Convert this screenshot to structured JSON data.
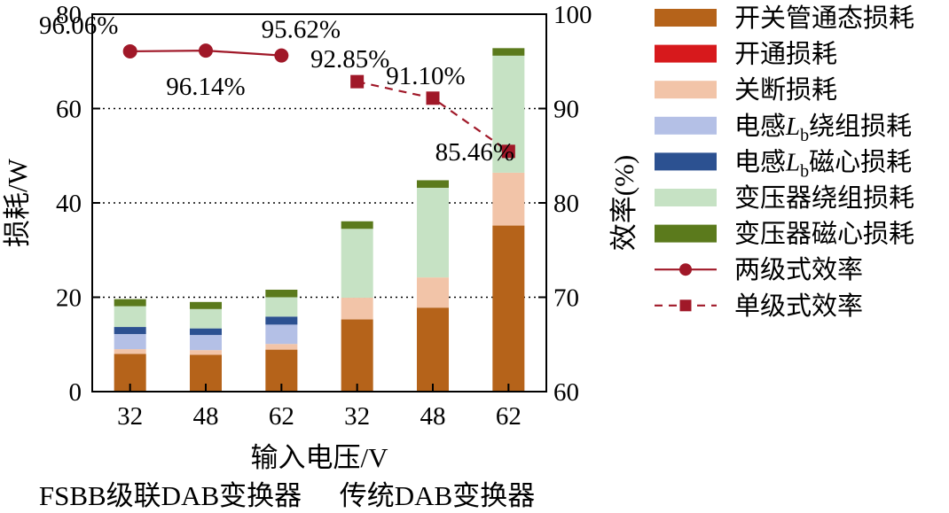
{
  "chart_data": {
    "type": "bar",
    "subtype": "stacked bar + line (dual axis)",
    "categories": [
      "32",
      "48",
      "62",
      "32",
      "48",
      "62"
    ],
    "xlabel": "输入电压/V",
    "group_labels": [
      "FSBB级联DAB变换器",
      "传统DAB变换器"
    ],
    "ylabel_left": "损耗/W",
    "ylabel_right": "效率(%)",
    "ylim_left": [
      0,
      80
    ],
    "ylim_right": [
      60,
      100
    ],
    "yticks_left": [
      "0",
      "20",
      "40",
      "60",
      "80"
    ],
    "yticks_right": [
      "60",
      "70",
      "80",
      "90",
      "100"
    ],
    "grid": "horizontal dotted",
    "legend_position": "right",
    "series": [
      {
        "name": "开关管通态损耗",
        "color": "#b5631a",
        "values": [
          8.0,
          7.8,
          8.9,
          15.3,
          17.8,
          35.2
        ]
      },
      {
        "name": "开通损耗",
        "color": "#d7191c",
        "values": [
          0,
          0,
          0,
          0,
          0,
          0
        ]
      },
      {
        "name": "关断损耗",
        "color": "#f2c4a8",
        "values": [
          1.0,
          1.0,
          1.2,
          4.6,
          6.4,
          11.2
        ]
      },
      {
        "name": "电感",
        "name_sub": "b",
        "name_tail": "绕组损耗",
        "name_var": "L",
        "color": "#b4c0e6",
        "values": [
          3.2,
          3.2,
          4.1,
          0,
          0,
          0
        ]
      },
      {
        "name": "电感",
        "name_sub": "b",
        "name_tail": "磁心损耗",
        "name_var": "L",
        "color": "#2c5191",
        "values": [
          1.5,
          1.4,
          1.7,
          0,
          0,
          0
        ]
      },
      {
        "name": "变压器绕组损耗",
        "color": "#c6e2c4",
        "values": [
          4.4,
          4.1,
          4.1,
          14.6,
          19.0,
          24.8
        ]
      },
      {
        "name": "变压器磁心损耗",
        "color": "#5b7a1c",
        "values": [
          1.5,
          1.5,
          1.6,
          1.6,
          1.6,
          1.6
        ]
      }
    ],
    "efficiency_series": [
      {
        "name": "两级式效率",
        "color": "#a01828",
        "marker": "circle",
        "dash": "solid",
        "x": [
          0,
          1,
          2
        ],
        "values": [
          96.06,
          96.14,
          95.62
        ],
        "labels": [
          "96.06%",
          "96.14%",
          "95.62%"
        ]
      },
      {
        "name": "单级式效率",
        "color": "#a01828",
        "marker": "square",
        "dash": "dashed",
        "x": [
          3,
          4,
          5
        ],
        "values": [
          92.85,
          91.1,
          85.46
        ],
        "labels": [
          "92.85%",
          "91.10%",
          "85.46%"
        ]
      }
    ]
  }
}
